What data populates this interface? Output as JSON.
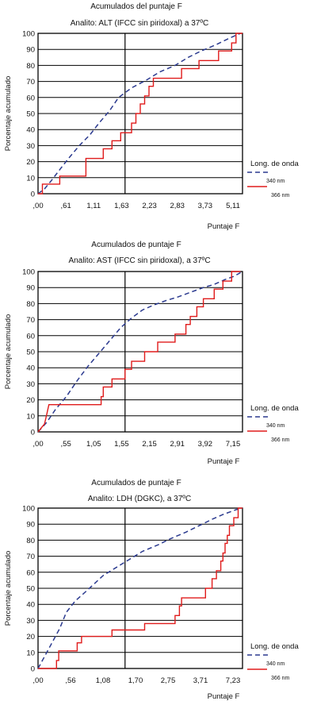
{
  "legend": {
    "title": "Long. de onda",
    "items": [
      {
        "label": "340 nm",
        "color": "#2b3a8f",
        "style": "dashed"
      },
      {
        "label": "366 nm",
        "color": "#e01b1b",
        "style": "solid"
      }
    ]
  },
  "chart_data": [
    {
      "type": "line",
      "title": "Acumulados del puntaje F",
      "subtitle": "Analito: ALT (IFCC sin piridoxal) a 37ºC",
      "xlabel": "Puntaje F",
      "ylabel": "Porcentaje acumulado",
      "x_ticks": [
        ",00",
        ",61",
        "1,11",
        "1,63",
        "2,23",
        "2,83",
        "3,73",
        "5,11"
      ],
      "y_ticks": [
        0,
        10,
        20,
        30,
        40,
        50,
        60,
        70,
        80,
        90,
        100
      ],
      "ylim": [
        0,
        100
      ],
      "vline_x": 4,
      "grid": true,
      "legend_position": "right",
      "series": [
        {
          "name": "340 nm",
          "color": "#2b3a8f",
          "style": "dashed",
          "points": [
            [
              0,
              0
            ],
            [
              0.3,
              3
            ],
            [
              0.6,
              8
            ],
            [
              1,
              15
            ],
            [
              1.4,
              22
            ],
            [
              1.9,
              30
            ],
            [
              2.4,
              37
            ],
            [
              2.8,
              44
            ],
            [
              3.3,
              52
            ],
            [
              3.7,
              60
            ],
            [
              4.3,
              66
            ],
            [
              5,
              71
            ],
            [
              5.6,
              76
            ],
            [
              6.3,
              80
            ],
            [
              6.9,
              85
            ],
            [
              7.5,
              89
            ],
            [
              8.2,
              93
            ],
            [
              8.8,
              97
            ],
            [
              9.3,
              100
            ]
          ]
        },
        {
          "name": "366 nm",
          "color": "#e01b1b",
          "style": "step",
          "points": [
            [
              0,
              0
            ],
            [
              0.2,
              0
            ],
            [
              0.2,
              6
            ],
            [
              1,
              6
            ],
            [
              1,
              11
            ],
            [
              2.2,
              11
            ],
            [
              2.2,
              22
            ],
            [
              3,
              22
            ],
            [
              3,
              28
            ],
            [
              3.4,
              28
            ],
            [
              3.4,
              33
            ],
            [
              3.8,
              33
            ],
            [
              3.8,
              38
            ],
            [
              4.3,
              38
            ],
            [
              4.3,
              44
            ],
            [
              4.5,
              44
            ],
            [
              4.5,
              50
            ],
            [
              4.7,
              50
            ],
            [
              4.7,
              56
            ],
            [
              4.9,
              56
            ],
            [
              4.9,
              61
            ],
            [
              5.1,
              61
            ],
            [
              5.1,
              67
            ],
            [
              5.3,
              67
            ],
            [
              5.3,
              72
            ],
            [
              6.6,
              72
            ],
            [
              6.6,
              78
            ],
            [
              7.4,
              78
            ],
            [
              7.4,
              83
            ],
            [
              8.3,
              83
            ],
            [
              8.3,
              89
            ],
            [
              8.9,
              89
            ],
            [
              8.9,
              94
            ],
            [
              9.1,
              94
            ],
            [
              9.1,
              100
            ],
            [
              9.4,
              100
            ]
          ]
        }
      ]
    },
    {
      "type": "line",
      "title": "Acumulados de puntaje F",
      "subtitle": "Analito: AST (IFCC sin piridoxal), a 37ºC",
      "xlabel": "Puntaje F",
      "ylabel": "Porcentaje acumulado",
      "x_ticks": [
        ",00",
        ",55",
        "1,05",
        "1,55",
        "2,15",
        "2,91",
        "3,92",
        "7,15"
      ],
      "y_ticks": [
        0,
        10,
        20,
        30,
        40,
        50,
        60,
        70,
        80,
        90,
        100
      ],
      "ylim": [
        0,
        100
      ],
      "vline_x": 4,
      "grid": true,
      "legend_position": "right",
      "series": [
        {
          "name": "340 nm",
          "color": "#2b3a8f",
          "style": "dashed",
          "points": [
            [
              0,
              0
            ],
            [
              0.4,
              6
            ],
            [
              0.8,
              14
            ],
            [
              1.3,
              22
            ],
            [
              1.8,
              32
            ],
            [
              2.3,
              41
            ],
            [
              2.8,
              49
            ],
            [
              3.3,
              57
            ],
            [
              3.8,
              65
            ],
            [
              4.3,
              71
            ],
            [
              4.8,
              76
            ],
            [
              5.3,
              79
            ],
            [
              5.9,
              82
            ],
            [
              6.4,
              84
            ],
            [
              7,
              87
            ],
            [
              7.6,
              90
            ],
            [
              8.1,
              92
            ],
            [
              8.6,
              95
            ],
            [
              9,
              97
            ],
            [
              9.4,
              100
            ]
          ]
        },
        {
          "name": "366 nm",
          "color": "#e01b1b",
          "style": "step",
          "points": [
            [
              0,
              0
            ],
            [
              0.3,
              5
            ],
            [
              0.4,
              11
            ],
            [
              0.5,
              17
            ],
            [
              2.9,
              17
            ],
            [
              2.9,
              22
            ],
            [
              3,
              22
            ],
            [
              3,
              28
            ],
            [
              3.4,
              28
            ],
            [
              3.4,
              33
            ],
            [
              4,
              33
            ],
            [
              4,
              39
            ],
            [
              4.3,
              39
            ],
            [
              4.3,
              44
            ],
            [
              4.9,
              44
            ],
            [
              4.9,
              50
            ],
            [
              5.5,
              50
            ],
            [
              5.5,
              56
            ],
            [
              6.3,
              56
            ],
            [
              6.3,
              61
            ],
            [
              6.8,
              61
            ],
            [
              6.8,
              67
            ],
            [
              7,
              67
            ],
            [
              7,
              72
            ],
            [
              7.3,
              72
            ],
            [
              7.3,
              78
            ],
            [
              7.6,
              78
            ],
            [
              7.6,
              83
            ],
            [
              8.1,
              83
            ],
            [
              8.1,
              89
            ],
            [
              8.5,
              89
            ],
            [
              8.5,
              94
            ],
            [
              8.9,
              94
            ],
            [
              8.9,
              100
            ],
            [
              9.3,
              100
            ]
          ]
        }
      ]
    },
    {
      "type": "line",
      "title": "Acumulados de puntaje F",
      "subtitle": "Analito: LDH (DGKC), a 37ºC",
      "xlabel": "Puntaje F",
      "ylabel": "Porcentaje acumulado",
      "x_ticks": [
        ",00",
        ",56",
        "1,08",
        "1,70",
        "2,75",
        "3,71",
        "7,23"
      ],
      "y_ticks": [
        0,
        10,
        20,
        30,
        40,
        50,
        60,
        70,
        80,
        90,
        100
      ],
      "ylim": [
        0,
        100
      ],
      "vline_x": 4,
      "grid": true,
      "legend_position": "right",
      "series": [
        {
          "name": "340 nm",
          "color": "#2b3a8f",
          "style": "dashed",
          "points": [
            [
              0,
              0
            ],
            [
              0.2,
              5
            ],
            [
              0.6,
              15
            ],
            [
              1,
              25
            ],
            [
              1.3,
              35
            ],
            [
              1.7,
              42
            ],
            [
              2.2,
              48
            ],
            [
              2.6,
              53
            ],
            [
              3,
              58
            ],
            [
              3.6,
              63
            ],
            [
              4.2,
              68
            ],
            [
              4.8,
              73
            ],
            [
              5.5,
              77
            ],
            [
              6.1,
              81
            ],
            [
              6.8,
              85
            ],
            [
              7.4,
              89
            ],
            [
              8,
              93
            ],
            [
              8.5,
              96
            ],
            [
              9.1,
              99
            ],
            [
              9.4,
              100
            ]
          ]
        },
        {
          "name": "366 nm",
          "color": "#e01b1b",
          "style": "step",
          "points": [
            [
              0,
              0
            ],
            [
              0.85,
              0
            ],
            [
              0.85,
              5
            ],
            [
              0.95,
              5
            ],
            [
              0.95,
              11
            ],
            [
              1.8,
              11
            ],
            [
              1.8,
              16
            ],
            [
              2,
              16
            ],
            [
              2,
              20
            ],
            [
              3.4,
              20
            ],
            [
              3.4,
              24
            ],
            [
              4.9,
              24
            ],
            [
              4.9,
              28
            ],
            [
              6.3,
              28
            ],
            [
              6.3,
              33
            ],
            [
              6.5,
              33
            ],
            [
              6.5,
              39
            ],
            [
              6.6,
              39
            ],
            [
              6.6,
              44
            ],
            [
              7.7,
              44
            ],
            [
              7.7,
              50
            ],
            [
              8,
              50
            ],
            [
              8,
              56
            ],
            [
              8.2,
              56
            ],
            [
              8.2,
              61
            ],
            [
              8.4,
              61
            ],
            [
              8.4,
              67
            ],
            [
              8.5,
              67
            ],
            [
              8.5,
              72
            ],
            [
              8.6,
              72
            ],
            [
              8.6,
              78
            ],
            [
              8.7,
              78
            ],
            [
              8.7,
              83
            ],
            [
              8.8,
              83
            ],
            [
              8.8,
              89
            ],
            [
              9,
              89
            ],
            [
              9,
              94
            ],
            [
              9.2,
              94
            ],
            [
              9.2,
              100
            ],
            [
              9.4,
              100
            ]
          ]
        }
      ]
    }
  ]
}
